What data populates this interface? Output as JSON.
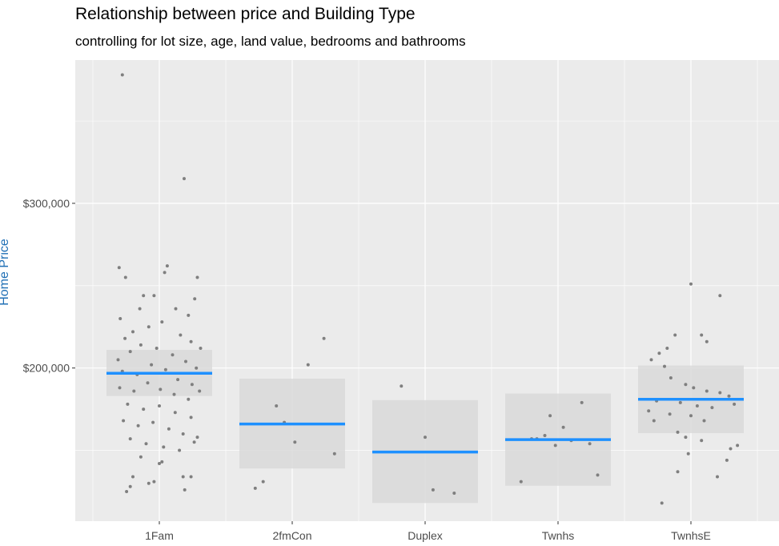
{
  "title": "Relationship between price and Building Type",
  "subtitle": "controlling for lot size, age, land value, bedrooms and bathrooms",
  "colors": {
    "panel_background": "#ebebeb",
    "grid": "#ffffff",
    "points": "#7f7f7f",
    "fit_line": "#1e90ff",
    "confidence_band": "#d9d9d9",
    "ylabel": "#1f6fb5"
  },
  "chart_data": {
    "type": "scatter",
    "title": "Relationship between price and Building Type",
    "subtitle": "controlling for lot size, age, land value, bedrooms and bathrooms",
    "xlabel": "",
    "ylabel": "",
    "categories": [
      "1Fam",
      "2fmCon",
      "Duplex",
      "Twnhs",
      "TwnhsE"
    ],
    "y_ticks": [
      200000,
      300000
    ],
    "y_tick_labels": [
      "$200,000",
      "$300,000"
    ],
    "ylim": [
      107000,
      387000
    ],
    "grid": true,
    "legend": "none",
    "series": [
      {
        "type": "line_with_ci",
        "categories": [
          "1Fam",
          "2fmCon",
          "Duplex",
          "Twnhs",
          "TwnhsE"
        ],
        "mean": [
          196800,
          166000,
          149000,
          156500,
          181000
        ],
        "ci_low": [
          183000,
          139000,
          118000,
          128500,
          160500
        ],
        "ci_high": [
          211000,
          193500,
          180500,
          184500,
          201500
        ]
      },
      {
        "type": "jitter",
        "points": [
          {
            "x": "1Fam",
            "offset": -0.7,
            "y": 378000
          },
          {
            "x": "1Fam",
            "offset": 0.47,
            "y": 315000
          },
          {
            "x": "1Fam",
            "offset": -0.76,
            "y": 261000
          },
          {
            "x": "1Fam",
            "offset": -0.64,
            "y": 255000
          },
          {
            "x": "1Fam",
            "offset": 0.15,
            "y": 262000
          },
          {
            "x": "1Fam",
            "offset": 0.1,
            "y": 258000
          },
          {
            "x": "1Fam",
            "offset": 0.72,
            "y": 255000
          },
          {
            "x": "1Fam",
            "offset": 0.67,
            "y": 242000
          },
          {
            "x": "1Fam",
            "offset": -0.37,
            "y": 236000
          },
          {
            "x": "1Fam",
            "offset": -0.1,
            "y": 244000
          },
          {
            "x": "1Fam",
            "offset": -0.3,
            "y": 244000
          },
          {
            "x": "1Fam",
            "offset": 0.31,
            "y": 236000
          },
          {
            "x": "1Fam",
            "offset": 0.55,
            "y": 232000
          },
          {
            "x": "1Fam",
            "offset": -0.74,
            "y": 230000
          },
          {
            "x": "1Fam",
            "offset": -0.65,
            "y": 218000
          },
          {
            "x": "1Fam",
            "offset": -0.5,
            "y": 222000
          },
          {
            "x": "1Fam",
            "offset": -0.2,
            "y": 225000
          },
          {
            "x": "1Fam",
            "offset": 0.05,
            "y": 228000
          },
          {
            "x": "1Fam",
            "offset": 0.4,
            "y": 220000
          },
          {
            "x": "1Fam",
            "offset": 0.6,
            "y": 216000
          },
          {
            "x": "1Fam",
            "offset": 0.78,
            "y": 212000
          },
          {
            "x": "1Fam",
            "offset": -0.78,
            "y": 205000
          },
          {
            "x": "1Fam",
            "offset": -0.55,
            "y": 210000
          },
          {
            "x": "1Fam",
            "offset": -0.35,
            "y": 214000
          },
          {
            "x": "1Fam",
            "offset": -0.05,
            "y": 212000
          },
          {
            "x": "1Fam",
            "offset": 0.25,
            "y": 208000
          },
          {
            "x": "1Fam",
            "offset": 0.5,
            "y": 204000
          },
          {
            "x": "1Fam",
            "offset": 0.7,
            "y": 200000
          },
          {
            "x": "1Fam",
            "offset": -0.7,
            "y": 198000
          },
          {
            "x": "1Fam",
            "offset": -0.42,
            "y": 196000
          },
          {
            "x": "1Fam",
            "offset": -0.15,
            "y": 202000
          },
          {
            "x": "1Fam",
            "offset": 0.12,
            "y": 199000
          },
          {
            "x": "1Fam",
            "offset": 0.35,
            "y": 193000
          },
          {
            "x": "1Fam",
            "offset": 0.62,
            "y": 190000
          },
          {
            "x": "1Fam",
            "offset": -0.75,
            "y": 188000
          },
          {
            "x": "1Fam",
            "offset": -0.48,
            "y": 186000
          },
          {
            "x": "1Fam",
            "offset": -0.22,
            "y": 191000
          },
          {
            "x": "1Fam",
            "offset": 0.02,
            "y": 187000
          },
          {
            "x": "1Fam",
            "offset": 0.28,
            "y": 184000
          },
          {
            "x": "1Fam",
            "offset": 0.55,
            "y": 181000
          },
          {
            "x": "1Fam",
            "offset": 0.76,
            "y": 186000
          },
          {
            "x": "1Fam",
            "offset": -0.6,
            "y": 178000
          },
          {
            "x": "1Fam",
            "offset": -0.3,
            "y": 175000
          },
          {
            "x": "1Fam",
            "offset": 0.0,
            "y": 177000
          },
          {
            "x": "1Fam",
            "offset": 0.3,
            "y": 173000
          },
          {
            "x": "1Fam",
            "offset": 0.6,
            "y": 170000
          },
          {
            "x": "1Fam",
            "offset": -0.68,
            "y": 168000
          },
          {
            "x": "1Fam",
            "offset": -0.4,
            "y": 165000
          },
          {
            "x": "1Fam",
            "offset": -0.12,
            "y": 167000
          },
          {
            "x": "1Fam",
            "offset": 0.18,
            "y": 163000
          },
          {
            "x": "1Fam",
            "offset": 0.45,
            "y": 160000
          },
          {
            "x": "1Fam",
            "offset": 0.72,
            "y": 158000
          },
          {
            "x": "1Fam",
            "offset": -0.55,
            "y": 157000
          },
          {
            "x": "1Fam",
            "offset": -0.25,
            "y": 154000
          },
          {
            "x": "1Fam",
            "offset": 0.08,
            "y": 152000
          },
          {
            "x": "1Fam",
            "offset": 0.38,
            "y": 150000
          },
          {
            "x": "1Fam",
            "offset": 0.66,
            "y": 155000
          },
          {
            "x": "1Fam",
            "offset": -0.35,
            "y": 146000
          },
          {
            "x": "1Fam",
            "offset": 0.05,
            "y": 143000
          },
          {
            "x": "1Fam",
            "offset": 0.0,
            "y": 142000
          },
          {
            "x": "1Fam",
            "offset": -0.5,
            "y": 134000
          },
          {
            "x": "1Fam",
            "offset": -0.2,
            "y": 130000
          },
          {
            "x": "1Fam",
            "offset": -0.1,
            "y": 131000
          },
          {
            "x": "1Fam",
            "offset": 0.45,
            "y": 134000
          },
          {
            "x": "1Fam",
            "offset": 0.6,
            "y": 134000
          },
          {
            "x": "1Fam",
            "offset": -0.62,
            "y": 125000
          },
          {
            "x": "1Fam",
            "offset": -0.55,
            "y": 128000
          },
          {
            "x": "1Fam",
            "offset": 0.48,
            "y": 126000
          },
          {
            "x": "2fmCon",
            "offset": 0.6,
            "y": 218000
          },
          {
            "x": "2fmCon",
            "offset": 0.3,
            "y": 202000
          },
          {
            "x": "2fmCon",
            "offset": -0.3,
            "y": 177000
          },
          {
            "x": "2fmCon",
            "offset": -0.15,
            "y": 167000
          },
          {
            "x": "2fmCon",
            "offset": 0.05,
            "y": 155000
          },
          {
            "x": "2fmCon",
            "offset": 0.8,
            "y": 148000
          },
          {
            "x": "2fmCon",
            "offset": -0.55,
            "y": 131000
          },
          {
            "x": "2fmCon",
            "offset": -0.7,
            "y": 127000
          },
          {
            "x": "Duplex",
            "offset": -0.45,
            "y": 189000
          },
          {
            "x": "Duplex",
            "offset": 0.0,
            "y": 158000
          },
          {
            "x": "Duplex",
            "offset": 0.15,
            "y": 126000
          },
          {
            "x": "Duplex",
            "offset": 0.55,
            "y": 124000
          },
          {
            "x": "Twnhs",
            "offset": 0.45,
            "y": 179000
          },
          {
            "x": "Twnhs",
            "offset": -0.15,
            "y": 171000
          },
          {
            "x": "Twnhs",
            "offset": 0.1,
            "y": 164000
          },
          {
            "x": "Twnhs",
            "offset": -0.25,
            "y": 159000
          },
          {
            "x": "Twnhs",
            "offset": -0.5,
            "y": 157000
          },
          {
            "x": "Twnhs",
            "offset": -0.4,
            "y": 157000
          },
          {
            "x": "Twnhs",
            "offset": 0.25,
            "y": 156000
          },
          {
            "x": "Twnhs",
            "offset": 0.6,
            "y": 154000
          },
          {
            "x": "Twnhs",
            "offset": -0.05,
            "y": 153000
          },
          {
            "x": "Twnhs",
            "offset": 0.75,
            "y": 135000
          },
          {
            "x": "Twnhs",
            "offset": -0.7,
            "y": 131000
          },
          {
            "x": "TwnhsE",
            "offset": 0.0,
            "y": 251000
          },
          {
            "x": "TwnhsE",
            "offset": 0.55,
            "y": 244000
          },
          {
            "x": "TwnhsE",
            "offset": -0.3,
            "y": 220000
          },
          {
            "x": "TwnhsE",
            "offset": 0.2,
            "y": 220000
          },
          {
            "x": "TwnhsE",
            "offset": 0.3,
            "y": 216000
          },
          {
            "x": "TwnhsE",
            "offset": -0.45,
            "y": 212000
          },
          {
            "x": "TwnhsE",
            "offset": -0.6,
            "y": 209000
          },
          {
            "x": "TwnhsE",
            "offset": -0.75,
            "y": 205000
          },
          {
            "x": "TwnhsE",
            "offset": -0.5,
            "y": 201000
          },
          {
            "x": "TwnhsE",
            "offset": -0.38,
            "y": 194000
          },
          {
            "x": "TwnhsE",
            "offset": -0.1,
            "y": 190000
          },
          {
            "x": "TwnhsE",
            "offset": 0.05,
            "y": 188000
          },
          {
            "x": "TwnhsE",
            "offset": 0.3,
            "y": 186000
          },
          {
            "x": "TwnhsE",
            "offset": 0.55,
            "y": 185000
          },
          {
            "x": "TwnhsE",
            "offset": 0.72,
            "y": 183000
          },
          {
            "x": "TwnhsE",
            "offset": -0.65,
            "y": 180000
          },
          {
            "x": "TwnhsE",
            "offset": -0.2,
            "y": 179000
          },
          {
            "x": "TwnhsE",
            "offset": 0.12,
            "y": 177000
          },
          {
            "x": "TwnhsE",
            "offset": 0.4,
            "y": 176000
          },
          {
            "x": "TwnhsE",
            "offset": 0.82,
            "y": 178000
          },
          {
            "x": "TwnhsE",
            "offset": -0.8,
            "y": 174000
          },
          {
            "x": "TwnhsE",
            "offset": -0.4,
            "y": 172000
          },
          {
            "x": "TwnhsE",
            "offset": 0.0,
            "y": 171000
          },
          {
            "x": "TwnhsE",
            "offset": 0.25,
            "y": 168000
          },
          {
            "x": "TwnhsE",
            "offset": -0.7,
            "y": 168000
          },
          {
            "x": "TwnhsE",
            "offset": -0.25,
            "y": 161000
          },
          {
            "x": "TwnhsE",
            "offset": -0.1,
            "y": 158000
          },
          {
            "x": "TwnhsE",
            "offset": 0.2,
            "y": 156000
          },
          {
            "x": "TwnhsE",
            "offset": 0.88,
            "y": 153000
          },
          {
            "x": "TwnhsE",
            "offset": 0.75,
            "y": 151000
          },
          {
            "x": "TwnhsE",
            "offset": -0.05,
            "y": 148000
          },
          {
            "x": "TwnhsE",
            "offset": 0.68,
            "y": 144000
          },
          {
            "x": "TwnhsE",
            "offset": -0.25,
            "y": 137000
          },
          {
            "x": "TwnhsE",
            "offset": 0.5,
            "y": 134000
          },
          {
            "x": "TwnhsE",
            "offset": -0.55,
            "y": 118000
          }
        ]
      }
    ]
  }
}
